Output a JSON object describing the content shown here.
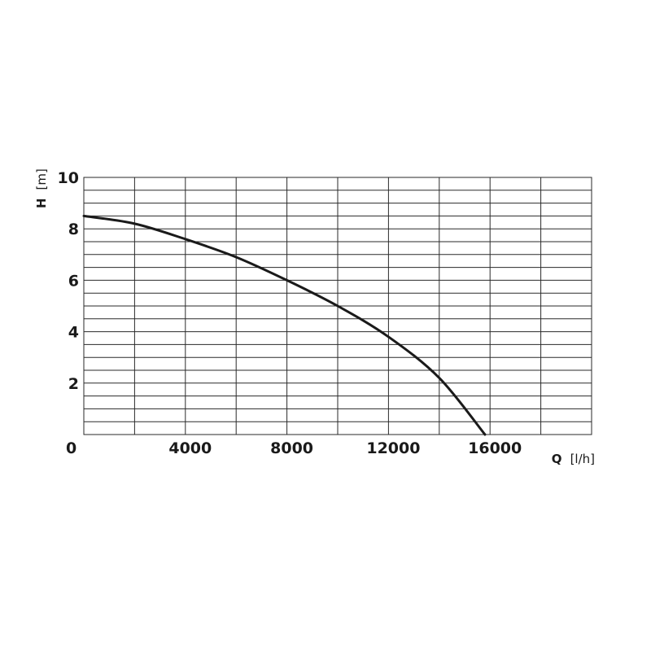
{
  "chart_data": {
    "type": "line",
    "xlabel": {
      "symbol": "Q",
      "unit": "[l/h]"
    },
    "ylabel": {
      "symbol": "H",
      "unit": "[m]"
    },
    "xlim": [
      0,
      20000
    ],
    "ylim": [
      0,
      10
    ],
    "x_ticks": [
      {
        "value": 0,
        "label": "0"
      },
      {
        "value": 4000,
        "label": "4000"
      },
      {
        "value": 8000,
        "label": "8000"
      },
      {
        "value": 12000,
        "label": "12000"
      },
      {
        "value": 16000,
        "label": "16000"
      }
    ],
    "y_ticks": [
      {
        "value": 2,
        "label": "2"
      },
      {
        "value": 4,
        "label": "4"
      },
      {
        "value": 6,
        "label": "6"
      },
      {
        "value": 8,
        "label": "8"
      },
      {
        "value": 10,
        "label": "10"
      }
    ],
    "x_grid_step": 2000,
    "y_grid_step": 0.5,
    "grid": true,
    "series": [
      {
        "points": [
          [
            0,
            8.5
          ],
          [
            2000,
            8.2
          ],
          [
            4000,
            7.6
          ],
          [
            6000,
            6.9
          ],
          [
            8000,
            6.0
          ],
          [
            10000,
            5.0
          ],
          [
            12000,
            3.8
          ],
          [
            14000,
            2.2
          ],
          [
            15800,
            0.0
          ]
        ]
      }
    ]
  }
}
